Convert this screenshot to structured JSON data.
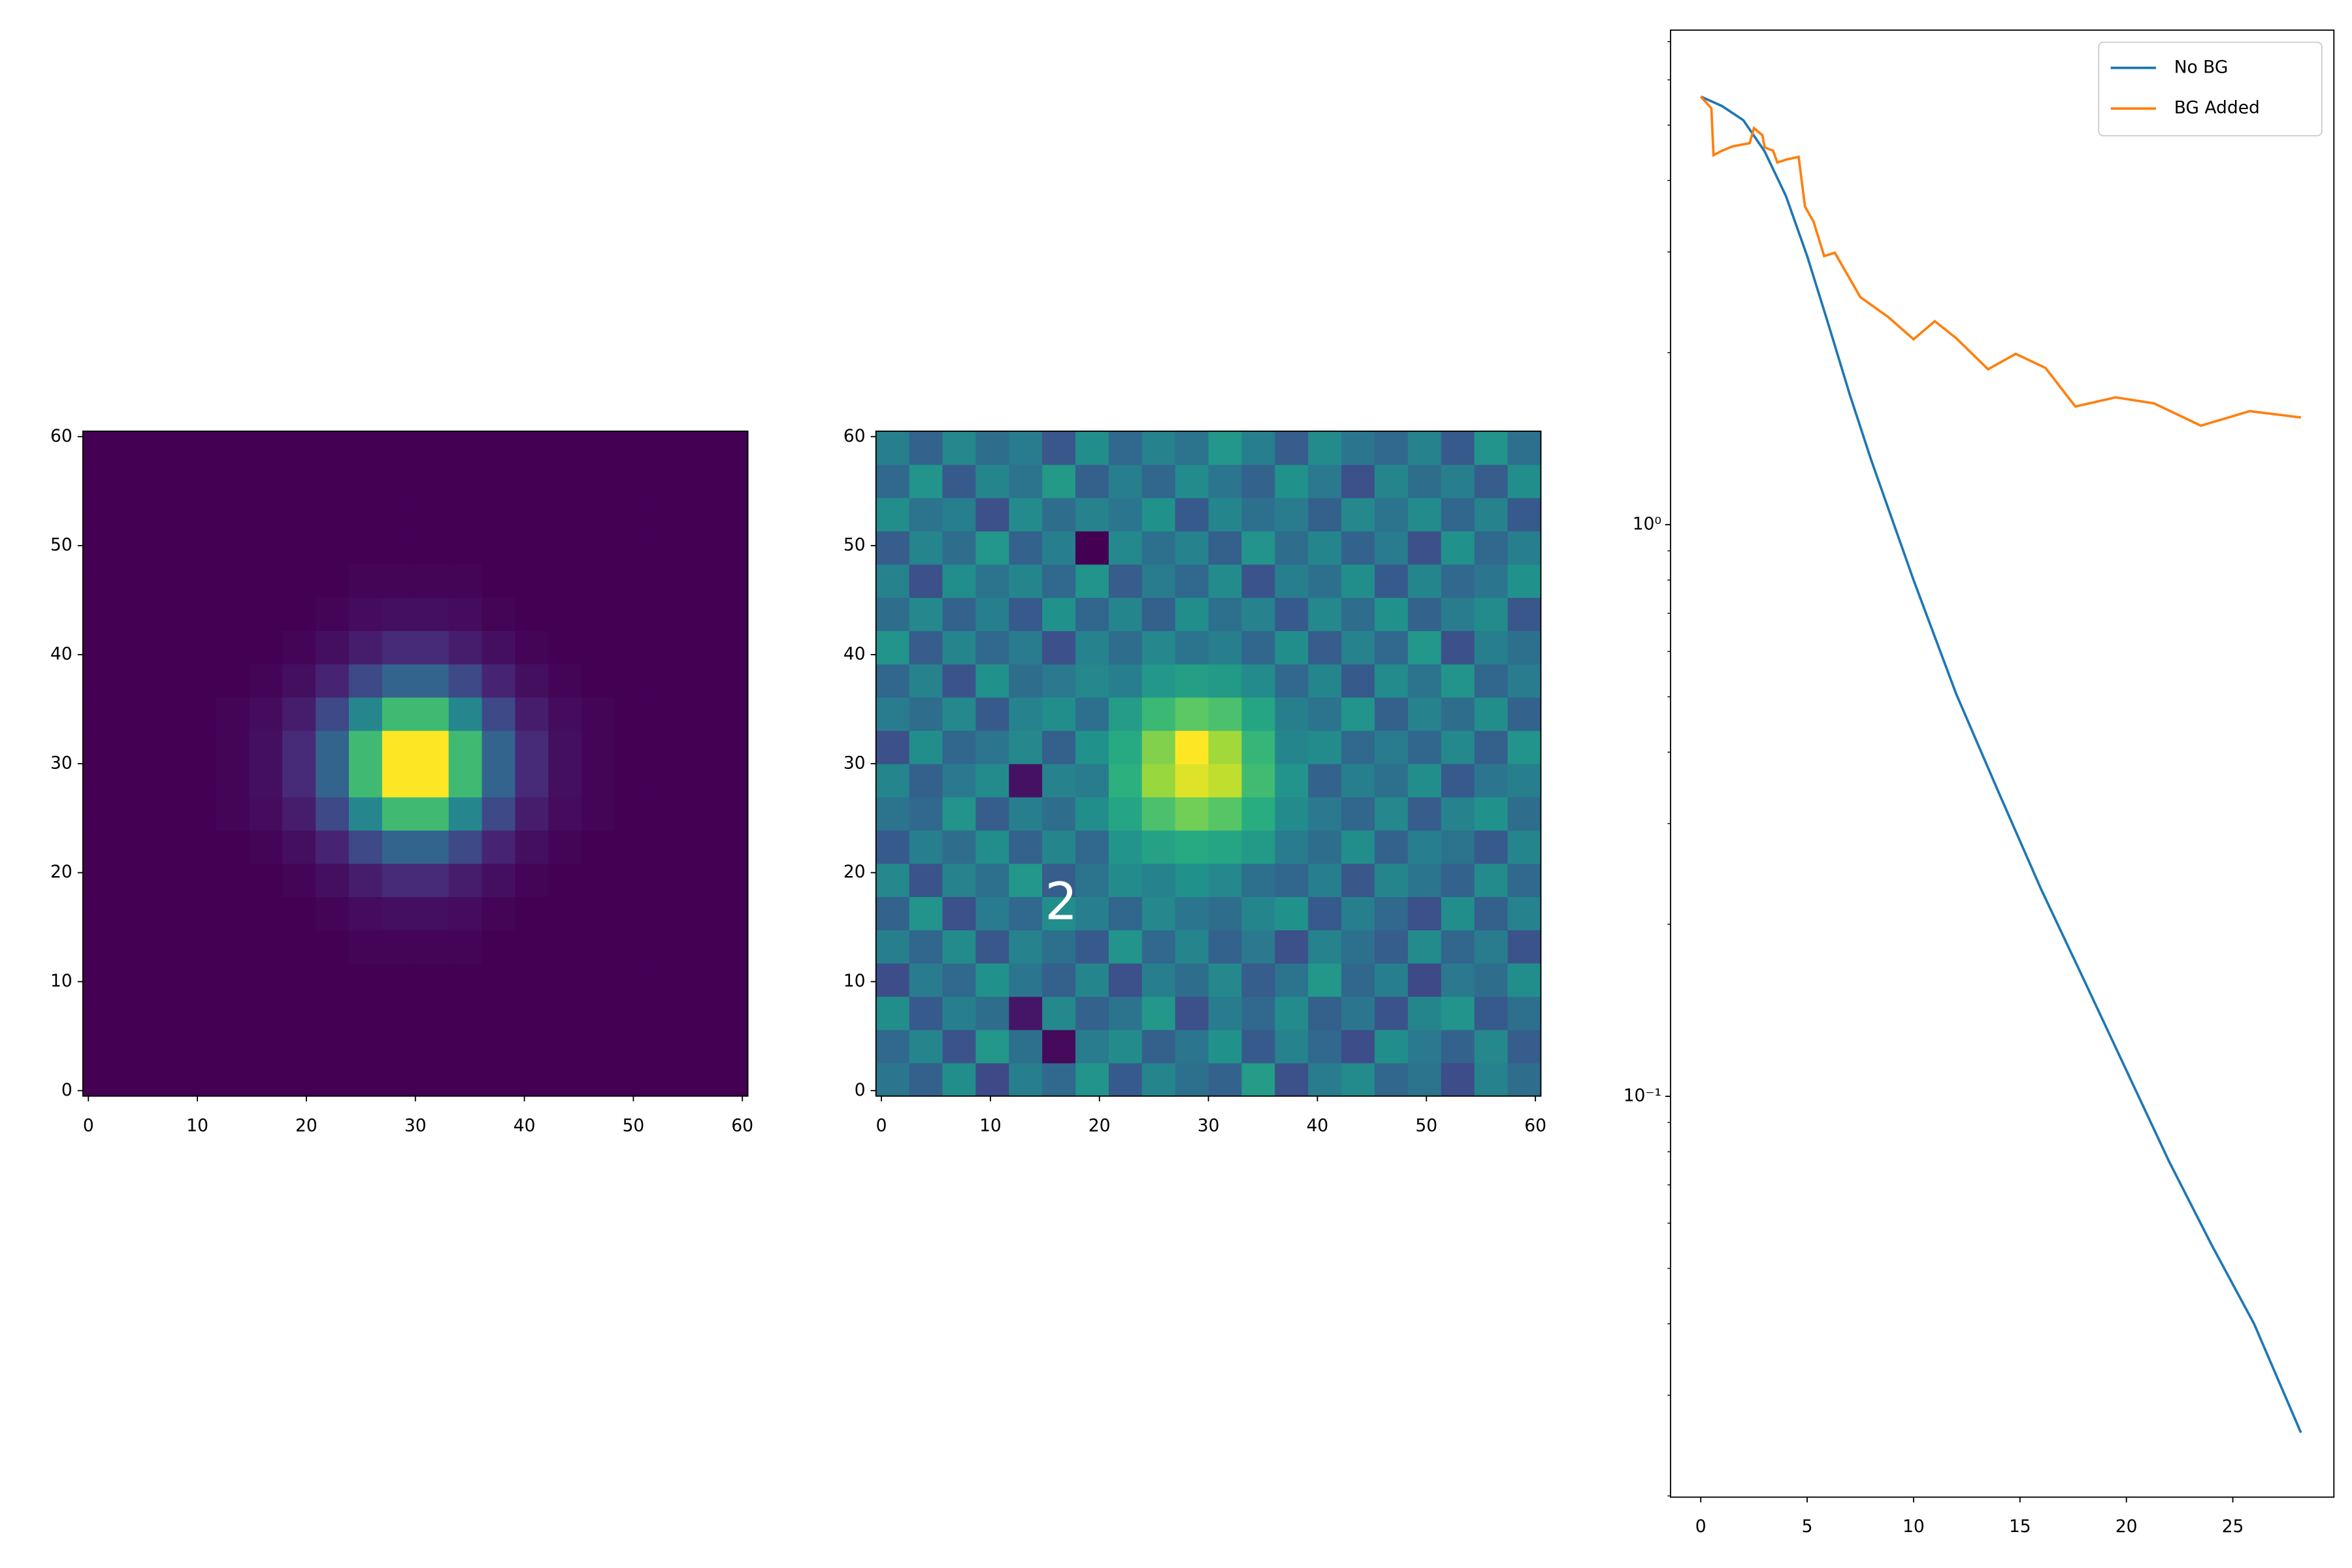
{
  "chart_data": [
    {
      "type": "heatmap",
      "colormap": "viridis",
      "origin": "lower",
      "xlim": [
        -0.5,
        60.5
      ],
      "ylim": [
        -0.5,
        60.5
      ],
      "xticks": [
        0,
        10,
        20,
        30,
        40,
        50,
        60
      ],
      "yticks": [
        0,
        10,
        20,
        30,
        40,
        50,
        60
      ],
      "values": [
        [
          0,
          0,
          0,
          0,
          0,
          0,
          0,
          0,
          0,
          0,
          0,
          0,
          0,
          0,
          0,
          0,
          0,
          0,
          0,
          0
        ],
        [
          0,
          0,
          0,
          0,
          0,
          0,
          0,
          0,
          0,
          0,
          0,
          0,
          0,
          0,
          0,
          0,
          0,
          0,
          0,
          0
        ],
        [
          0,
          0,
          0,
          0,
          0,
          0,
          0,
          0,
          0,
          0,
          0,
          0,
          0,
          0,
          0,
          0,
          0,
          0,
          0,
          0
        ],
        [
          0,
          0,
          0,
          0,
          0,
          0,
          0,
          0,
          0,
          0,
          0,
          0,
          0,
          0,
          0,
          0,
          0,
          0,
          0,
          0
        ],
        [
          0,
          0,
          0,
          0,
          0,
          0,
          0,
          0,
          1,
          1,
          1,
          1,
          0,
          0,
          0,
          0,
          0,
          0,
          0,
          0
        ],
        [
          0,
          0,
          0,
          0,
          0,
          0,
          0,
          1,
          3,
          4,
          4,
          3,
          1,
          0,
          0,
          0,
          0,
          0,
          0,
          0
        ],
        [
          0,
          0,
          0,
          0,
          0,
          0,
          1,
          4,
          8,
          12,
          12,
          8,
          4,
          1,
          0,
          0,
          0,
          0,
          0,
          0
        ],
        [
          0,
          0,
          0,
          0,
          0,
          1,
          4,
          10,
          22,
          32,
          32,
          22,
          10,
          4,
          1,
          0,
          0,
          0,
          0,
          0
        ],
        [
          0,
          0,
          0,
          0,
          1,
          3,
          8,
          22,
          46,
          68,
          68,
          46,
          22,
          8,
          3,
          1,
          0,
          0,
          0,
          0
        ],
        [
          0,
          0,
          0,
          0,
          1,
          4,
          12,
          32,
          68,
          100,
          100,
          68,
          32,
          12,
          4,
          1,
          0,
          0,
          0,
          0
        ],
        [
          0,
          0,
          0,
          0,
          1,
          4,
          12,
          32,
          68,
          100,
          100,
          68,
          32,
          12,
          4,
          1,
          0,
          0,
          0,
          0
        ],
        [
          0,
          0,
          0,
          0,
          1,
          3,
          8,
          22,
          46,
          68,
          68,
          46,
          22,
          8,
          3,
          1,
          0,
          0,
          0,
          0
        ],
        [
          0,
          0,
          0,
          0,
          0,
          1,
          4,
          10,
          22,
          32,
          32,
          22,
          10,
          4,
          1,
          0,
          0,
          0,
          0,
          0
        ],
        [
          0,
          0,
          0,
          0,
          0,
          0,
          1,
          4,
          8,
          12,
          12,
          8,
          4,
          1,
          0,
          0,
          0,
          0,
          0,
          0
        ],
        [
          0,
          0,
          0,
          0,
          0,
          0,
          0,
          1,
          3,
          4,
          4,
          3,
          1,
          0,
          0,
          0,
          0,
          0,
          0,
          0
        ],
        [
          0,
          0,
          0,
          0,
          0,
          0,
          0,
          0,
          1,
          1,
          1,
          1,
          0,
          0,
          0,
          0,
          0,
          0,
          0,
          0
        ],
        [
          0,
          0,
          0,
          0,
          0,
          0,
          0,
          0,
          0,
          0,
          0,
          0,
          0,
          0,
          0,
          0,
          0,
          0,
          0,
          0
        ],
        [
          0,
          0,
          0,
          0,
          0,
          0,
          0,
          0,
          0,
          0,
          0,
          0,
          0,
          0,
          0,
          0,
          0,
          0,
          0,
          0
        ],
        [
          0,
          0,
          0,
          0,
          0,
          0,
          0,
          0,
          0,
          0,
          0,
          0,
          0,
          0,
          0,
          0,
          0,
          0,
          0,
          0
        ],
        [
          0,
          0,
          0,
          0,
          0,
          0,
          0,
          0,
          0,
          0,
          0,
          0,
          0,
          0,
          0,
          0,
          0,
          0,
          0,
          0
        ]
      ]
    },
    {
      "type": "heatmap",
      "colormap": "viridis",
      "origin": "lower",
      "xlim": [
        -0.5,
        60.5
      ],
      "ylim": [
        -0.5,
        60.5
      ],
      "xticks": [
        0,
        10,
        20,
        30,
        40,
        50,
        60
      ],
      "yticks": [
        0,
        10,
        20,
        30,
        40,
        50,
        60
      ],
      "annotations": [
        {
          "text": "2",
          "x": 16.5,
          "y": 17,
          "color": "#ffffff"
        }
      ],
      "values": [
        [
          42,
          35,
          50,
          28,
          45,
          38,
          52,
          33,
          47,
          40,
          36,
          55,
          30,
          44,
          49,
          37,
          41,
          29,
          46,
          39
        ],
        [
          38,
          47,
          31,
          53,
          40,
          12,
          44,
          49,
          35,
          42,
          51,
          33,
          46,
          38,
          29,
          50,
          43,
          36,
          48,
          34
        ],
        [
          50,
          33,
          45,
          39,
          15,
          48,
          36,
          41,
          53,
          30,
          44,
          38,
          49,
          35,
          42,
          31,
          47,
          52,
          33,
          40
        ],
        [
          29,
          44,
          38,
          51,
          42,
          35,
          47,
          30,
          45,
          39,
          48,
          34,
          41,
          53,
          37,
          45,
          28,
          43,
          39,
          50
        ],
        [
          45,
          37,
          49,
          32,
          46,
          40,
          33,
          52,
          38,
          47,
          36,
          43,
          30,
          46,
          40,
          34,
          49,
          37,
          44,
          31
        ],
        [
          36,
          52,
          30,
          44,
          38,
          50,
          45,
          37,
          48,
          42,
          39,
          47,
          51,
          33,
          45,
          38,
          30,
          50,
          35,
          46
        ],
        [
          48,
          31,
          46,
          40,
          53,
          34,
          41,
          49,
          46,
          51,
          48,
          40,
          37,
          45,
          32,
          47,
          42,
          36,
          49,
          38
        ],
        [
          33,
          45,
          39,
          50,
          36,
          47,
          38,
          52,
          57,
          60,
          58,
          54,
          44,
          39,
          50,
          36,
          45,
          41,
          33,
          47
        ],
        [
          41,
          38,
          52,
          34,
          45,
          39,
          50,
          58,
          68,
          74,
          70,
          61,
          49,
          43,
          37,
          48,
          34,
          46,
          51,
          39
        ],
        [
          47,
          35,
          43,
          49,
          14,
          46,
          44,
          62,
          79,
          88,
          84,
          66,
          52,
          36,
          45,
          40,
          50,
          33,
          42,
          45
        ],
        [
          30,
          50,
          37,
          42,
          48,
          35,
          51,
          60,
          76,
          92,
          80,
          64,
          47,
          49,
          38,
          44,
          37,
          48,
          35,
          52
        ],
        [
          44,
          39,
          48,
          33,
          46,
          50,
          40,
          55,
          65,
          71,
          68,
          58,
          45,
          41,
          52,
          35,
          46,
          39,
          50,
          36
        ],
        [
          37,
          46,
          31,
          51,
          39,
          43,
          48,
          45,
          53,
          56,
          54,
          49,
          38,
          47,
          33,
          49,
          41,
          52,
          37,
          44
        ],
        [
          52,
          34,
          47,
          38,
          44,
          30,
          46,
          39,
          48,
          41,
          45,
          37,
          50,
          34,
          46,
          38,
          53,
          30,
          45,
          40
        ],
        [
          39,
          48,
          36,
          45,
          33,
          51,
          37,
          47,
          35,
          50,
          40,
          46,
          33,
          48,
          39,
          51,
          36,
          44,
          49,
          32
        ],
        [
          46,
          30,
          50,
          41,
          47,
          38,
          52,
          34,
          44,
          38,
          49,
          31,
          45,
          40,
          50,
          33,
          47,
          38,
          42,
          51
        ],
        [
          34,
          47,
          39,
          53,
          36,
          45,
          10,
          48,
          40,
          46,
          35,
          52,
          39,
          47,
          36,
          44,
          30,
          51,
          38,
          45
        ],
        [
          50,
          41,
          45,
          30,
          49,
          39,
          46,
          42,
          51,
          33,
          47,
          40,
          44,
          35,
          48,
          41,
          49,
          37,
          46,
          33
        ],
        [
          38,
          52,
          33,
          47,
          41,
          54,
          35,
          45,
          37,
          49,
          42,
          36,
          51,
          43,
          30,
          47,
          39,
          45,
          34,
          50
        ],
        [
          45,
          36,
          48,
          39,
          44,
          32,
          50,
          38,
          46,
          41,
          53,
          45,
          34,
          49,
          42,
          38,
          46,
          33,
          52,
          40
        ]
      ]
    },
    {
      "type": "line",
      "log_y": true,
      "legend": "upper right",
      "xlim": [
        -1.42,
        29.75
      ],
      "ylim": [
        0.0199,
        7.33
      ],
      "xticks": [
        0,
        5,
        10,
        15,
        20,
        25
      ],
      "yticks": [
        {
          "value": 0.1,
          "label": "10⁻¹"
        },
        {
          "value": 1,
          "label": "10⁰"
        }
      ],
      "yminorticks": [
        0.02,
        0.03,
        0.04,
        0.05,
        0.06,
        0.07,
        0.08,
        0.09,
        0.2,
        0.3,
        0.4,
        0.5,
        0.6,
        0.7,
        0.8,
        0.9,
        2,
        3,
        4,
        5,
        6,
        7
      ],
      "series": [
        {
          "name": "No BG",
          "color": "#1f77b4",
          "x": [
            0,
            1,
            2,
            3,
            4,
            5,
            6,
            7,
            8,
            9,
            10,
            12,
            14,
            16,
            18,
            20,
            22,
            24,
            26,
            28.2
          ],
          "values": [
            5.61,
            5.4,
            5.1,
            4.5,
            3.76,
            2.95,
            2.24,
            1.69,
            1.3,
            1.02,
            0.8,
            0.506,
            0.34,
            0.23,
            0.16,
            0.111,
            0.077,
            0.055,
            0.04,
            0.0258
          ]
        },
        {
          "name": "BG Added",
          "color": "#ff7f0e",
          "x": [
            0,
            0.5,
            0.6,
            1,
            1.5,
            2.3,
            2.5,
            2.9,
            3.0,
            3.4,
            3.6,
            4.0,
            4.6,
            4.9,
            5.3,
            5.8,
            6.3,
            7.5,
            8.8,
            10,
            11,
            12,
            13.5,
            14.8,
            16.2,
            17.6,
            19.5,
            21.3,
            23.5,
            25.8,
            28.2
          ],
          "values": [
            5.61,
            5.35,
            4.43,
            4.51,
            4.59,
            4.65,
            4.94,
            4.8,
            4.57,
            4.51,
            4.3,
            4.35,
            4.4,
            3.6,
            3.39,
            2.95,
            2.99,
            2.5,
            2.31,
            2.11,
            2.27,
            2.12,
            1.87,
            1.99,
            1.88,
            1.61,
            1.67,
            1.63,
            1.49,
            1.58,
            1.54
          ]
        }
      ]
    }
  ]
}
